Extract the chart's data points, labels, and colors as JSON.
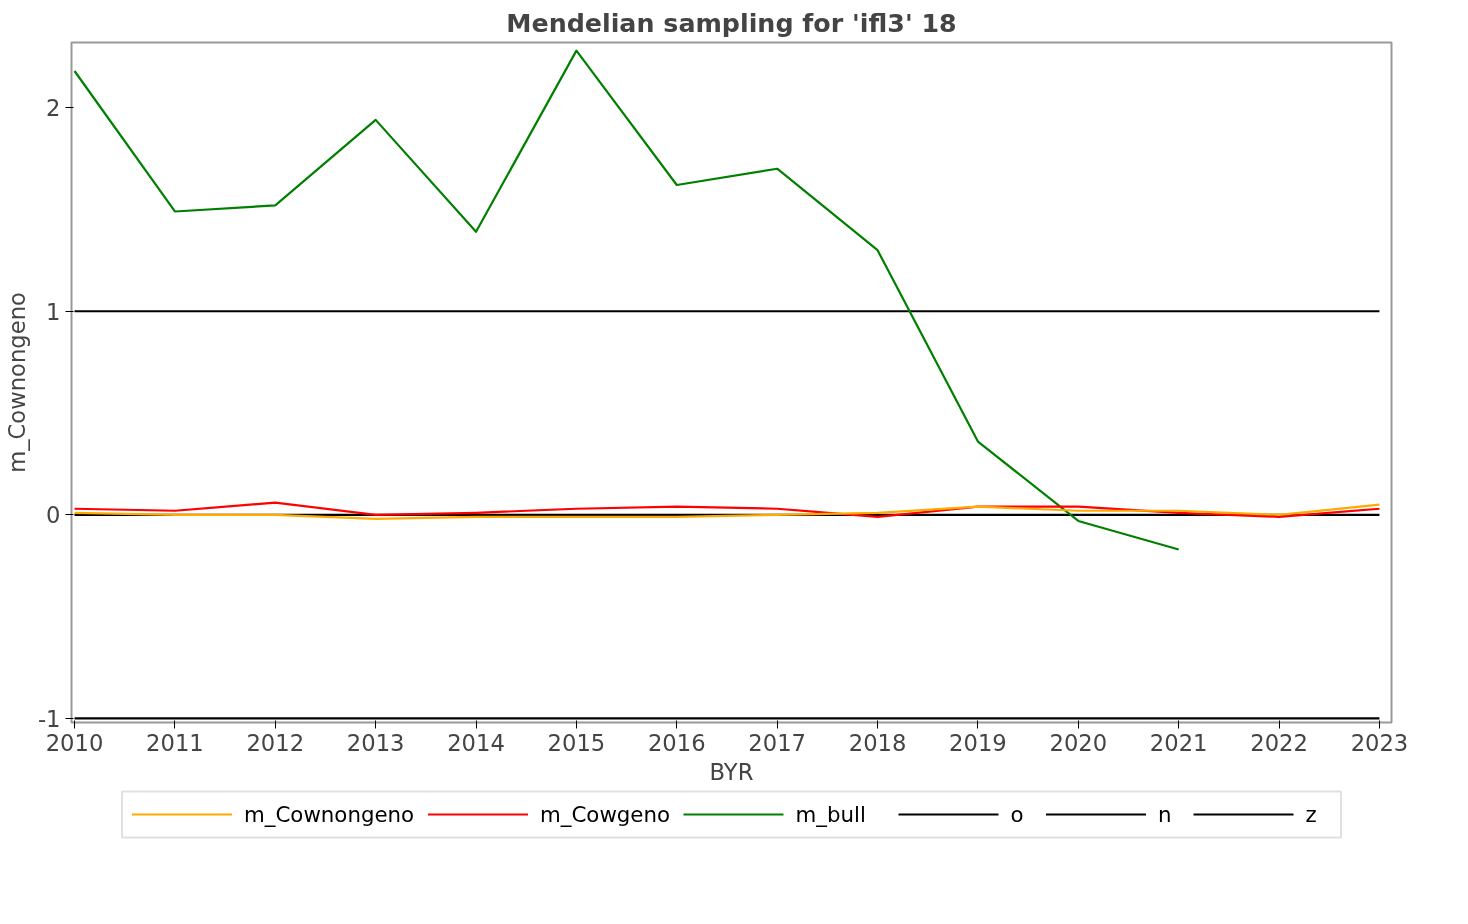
{
  "chart_data": {
    "type": "line",
    "title": "Mendelian sampling for 'ifl3' 18",
    "xlabel": "BYR",
    "ylabel": "m_Cownongeno",
    "x": [
      2010,
      2011,
      2012,
      2013,
      2014,
      2015,
      2016,
      2017,
      2018,
      2019,
      2020,
      2021,
      2022,
      2023
    ],
    "series": [
      {
        "name": "m_Cownongeno",
        "color": "#ffaa00",
        "values": [
          0.01,
          0.0,
          0.0,
          -0.02,
          -0.01,
          -0.01,
          -0.01,
          0.0,
          0.01,
          0.04,
          0.02,
          0.02,
          0.0,
          0.05
        ]
      },
      {
        "name": "m_Cowgeno",
        "color": "#ff0000",
        "values": [
          0.03,
          0.02,
          0.06,
          0.0,
          0.01,
          0.03,
          0.04,
          0.03,
          -0.01,
          0.04,
          0.04,
          0.01,
          -0.01,
          0.03
        ]
      },
      {
        "name": "m_bull",
        "color": "#008000",
        "values": [
          2.18,
          1.49,
          1.52,
          1.94,
          1.39,
          2.28,
          1.62,
          1.7,
          1.3,
          0.36,
          -0.03,
          -0.17,
          null,
          null
        ]
      },
      {
        "name": "o",
        "color": "#000000",
        "values": [
          1,
          1,
          1,
          1,
          1,
          1,
          1,
          1,
          1,
          1,
          1,
          1,
          1,
          1
        ]
      },
      {
        "name": "n",
        "color": "#000000",
        "values": [
          -1,
          -1,
          -1,
          -1,
          -1,
          -1,
          -1,
          -1,
          -1,
          -1,
          -1,
          -1,
          -1,
          -1
        ]
      },
      {
        "name": "z",
        "color": "#000000",
        "values": [
          0,
          0,
          0,
          0,
          0,
          0,
          0,
          0,
          0,
          0,
          0,
          0,
          0,
          0
        ]
      }
    ],
    "xlim": [
      2009.97,
      2023.12
    ],
    "ylim": [
      -1.02,
      2.32
    ],
    "xticks": [
      2010,
      2011,
      2012,
      2013,
      2014,
      2015,
      2016,
      2017,
      2018,
      2019,
      2020,
      2021,
      2022,
      2023
    ],
    "yticks": [
      -1,
      0,
      1,
      2
    ],
    "grid": false,
    "legend": "bottom",
    "line_style": "solid",
    "marker": "none"
  }
}
